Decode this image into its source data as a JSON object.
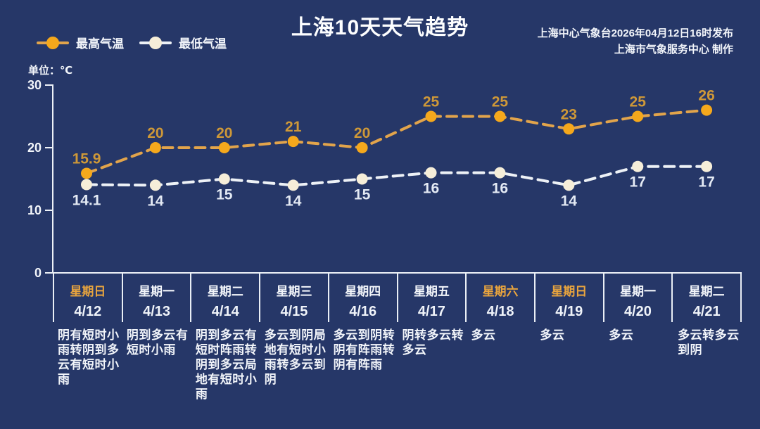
{
  "title": "上海10天天气趋势",
  "source_line1": "上海中心气象台2026年04月12日16时发布",
  "source_line2": "上海市气象服务中心  制作",
  "unit_label": "单位：℃",
  "legend": {
    "high_label": "最高气温",
    "low_label": "最低气温"
  },
  "colors": {
    "background": "#263768",
    "axis": "#EDF1F7",
    "tick_text": "#F2F5FA",
    "high_dot": "#F5A81C",
    "high_line": "#E2A44B",
    "high_label": "#CE9838",
    "low_dot": "#F6EED9",
    "low_line": "#EDF1F6",
    "low_label": "#E4EAF4",
    "weekend_text": "#E8A43E"
  },
  "chart_data": {
    "type": "line",
    "title": "上海10天天气趋势",
    "x": [
      "4/12",
      "4/13",
      "4/14",
      "4/15",
      "4/16",
      "4/17",
      "4/18",
      "4/19",
      "4/20",
      "4/21"
    ],
    "series": [
      {
        "name": "最高气温",
        "values": [
          15.9,
          20,
          20,
          21,
          20,
          25,
          25,
          23,
          25,
          26
        ]
      },
      {
        "name": "最低气温",
        "values": [
          14.1,
          14,
          15,
          14,
          15,
          16,
          16,
          14,
          17,
          17
        ]
      }
    ],
    "ylabel": "单位：℃",
    "ylim": [
      0,
      30
    ],
    "yticks": [
      0,
      10,
      20,
      30
    ],
    "grid": false,
    "line_style": "dashed",
    "legend_position": "top-left"
  },
  "days": [
    {
      "weekday": "星期日",
      "date": "4/12",
      "weekend": true,
      "weather": "阴有短时小雨转阴到多云有短时小雨"
    },
    {
      "weekday": "星期一",
      "date": "4/13",
      "weekend": false,
      "weather": "阴到多云有短时小雨"
    },
    {
      "weekday": "星期二",
      "date": "4/14",
      "weekend": false,
      "weather": "阴到多云有短时阵雨转阴到多云局地有短时小雨"
    },
    {
      "weekday": "星期三",
      "date": "4/15",
      "weekend": false,
      "weather": "多云到阴局地有短时小雨转多云到阴"
    },
    {
      "weekday": "星期四",
      "date": "4/16",
      "weekend": false,
      "weather": "多云到阴转阴有阵雨转阴有阵雨"
    },
    {
      "weekday": "星期五",
      "date": "4/17",
      "weekend": false,
      "weather": "阴转多云转多云"
    },
    {
      "weekday": "星期六",
      "date": "4/18",
      "weekend": true,
      "weather": "多云"
    },
    {
      "weekday": "星期日",
      "date": "4/19",
      "weekend": true,
      "weather": "多云"
    },
    {
      "weekday": "星期一",
      "date": "4/20",
      "weekend": false,
      "weather": "多云"
    },
    {
      "weekday": "星期二",
      "date": "4/21",
      "weekend": false,
      "weather": "多云转多云到阴"
    }
  ]
}
